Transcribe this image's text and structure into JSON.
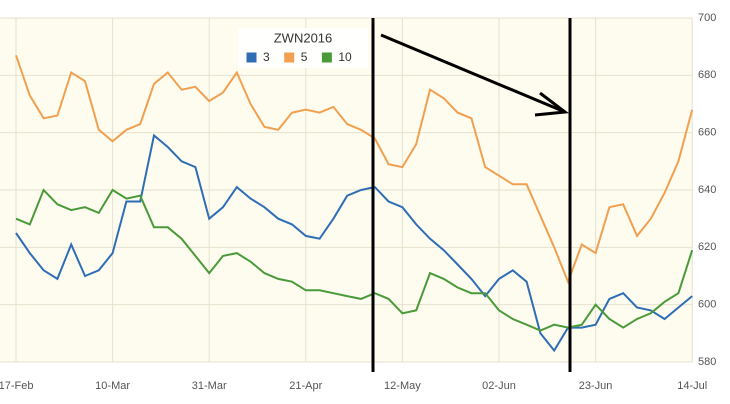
{
  "chart_data": {
    "type": "line",
    "legend_title": "ZWN2016",
    "categories": [
      "17-Feb",
      null,
      null,
      null,
      null,
      null,
      null,
      "10-Mar",
      null,
      null,
      null,
      null,
      null,
      null,
      "31-Mar",
      null,
      null,
      null,
      null,
      null,
      null,
      "21-Apr",
      null,
      null,
      null,
      null,
      null,
      null,
      "12-May",
      null,
      null,
      null,
      null,
      null,
      null,
      "02-Jun",
      null,
      null,
      null,
      null,
      null,
      null,
      "23-Jun",
      null,
      null,
      null,
      null,
      null,
      null,
      "14-Jul"
    ],
    "series": [
      {
        "name": "3",
        "color": "#2f6db5",
        "values": [
          625,
          618,
          612,
          609,
          621,
          610,
          612,
          618,
          636,
          636,
          659,
          655,
          650,
          648,
          630,
          634,
          641,
          637,
          634,
          630,
          628,
          624,
          623,
          630,
          638,
          640,
          641,
          636,
          634,
          628,
          623,
          619,
          614,
          609,
          603,
          609,
          612,
          608,
          590,
          584,
          592,
          592,
          593,
          602,
          604,
          599,
          598,
          595,
          599,
          603
        ]
      },
      {
        "name": "5",
        "color": "#f0a050",
        "values": [
          687,
          673,
          665,
          666,
          681,
          678,
          661,
          657,
          661,
          663,
          677,
          681,
          675,
          676,
          671,
          674,
          681,
          670,
          662,
          661,
          667,
          668,
          667,
          669,
          663,
          661,
          658,
          649,
          648,
          656,
          675,
          672,
          667,
          665,
          648,
          645,
          642,
          642,
          631,
          620,
          608,
          621,
          618,
          634,
          635,
          624,
          630,
          639,
          650,
          668
        ]
      },
      {
        "name": "10",
        "color": "#4a9a3a",
        "values": [
          630,
          628,
          640,
          635,
          633,
          634,
          632,
          640,
          637,
          638,
          627,
          627,
          623,
          617,
          611,
          617,
          618,
          615,
          611,
          609,
          608,
          605,
          605,
          604,
          603,
          602,
          604,
          602,
          597,
          598,
          611,
          609,
          606,
          604,
          604,
          598,
          595,
          593,
          591,
          593,
          592,
          593,
          600,
          595,
          592,
          595,
          597,
          601,
          604,
          619
        ]
      }
    ],
    "ylim": [
      580,
      700
    ],
    "yticks": [
      580,
      600,
      620,
      640,
      660,
      680,
      700
    ],
    "grid": true
  }
}
